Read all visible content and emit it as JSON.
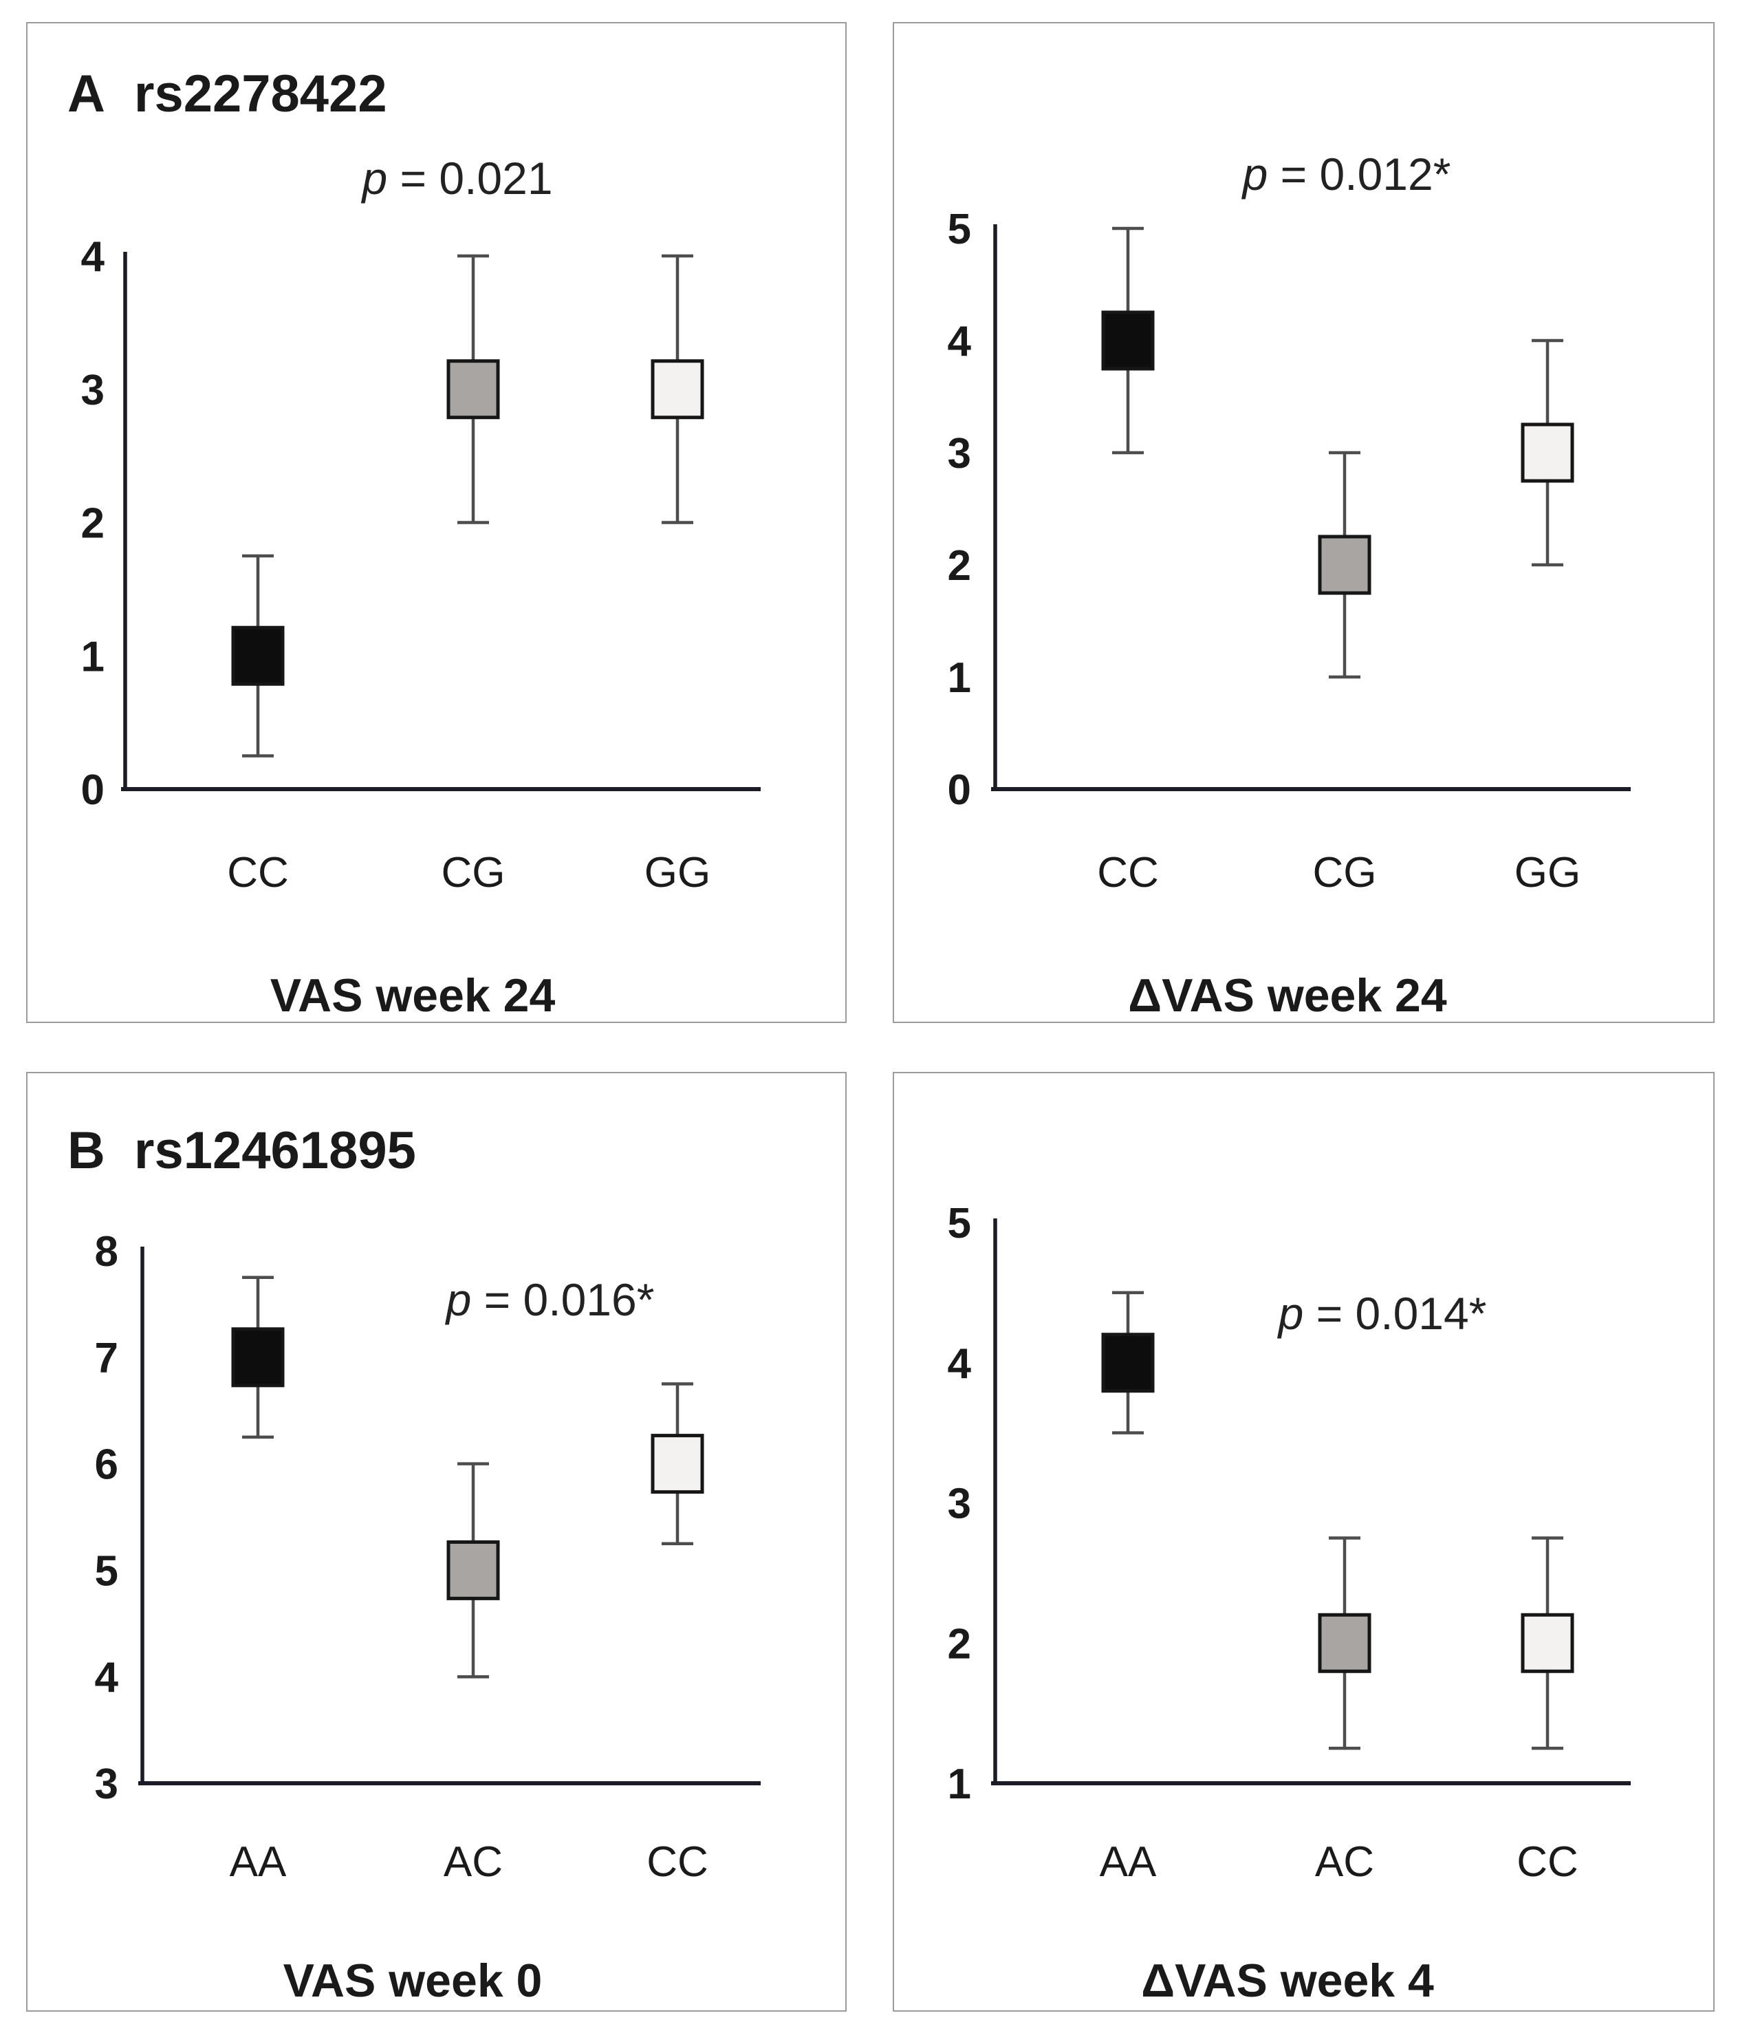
{
  "figure": {
    "style": {
      "marker_fill_dark": "#0d0d0d",
      "marker_fill_gray": "#a8a5a3",
      "marker_fill_light": "#f3f2f0",
      "marker_edge": "#161616",
      "error_bar_color": "#4d4d4d",
      "axis_color": "#1b1b26",
      "text_color": "#1a1a1a",
      "panel_border_color": "#9c9c9c"
    }
  },
  "chart_data": [
    {
      "type": "scatter",
      "panel_label": "A",
      "snp": "rs2278422",
      "p_label": "p = 0.021",
      "xlabel": "VAS week 24",
      "categories": [
        "CC",
        "CG",
        "GG"
      ],
      "means": [
        1,
        3,
        3
      ],
      "err_low": [
        0.25,
        2,
        2
      ],
      "err_high": [
        1.75,
        4,
        4
      ],
      "ylim": [
        0,
        4
      ],
      "yticks": [
        0,
        1,
        2,
        3,
        4
      ],
      "marker_colors": [
        "#0d0d0d",
        "#a8a5a3",
        "#f3f2f0"
      ],
      "grid": false,
      "legend": "none"
    },
    {
      "type": "scatter",
      "panel_label": "",
      "snp": "",
      "p_label": "p = 0.012*",
      "xlabel": "ΔVAS week 24",
      "categories": [
        "CC",
        "CG",
        "GG"
      ],
      "means": [
        4,
        2,
        3
      ],
      "err_low": [
        3,
        1,
        2
      ],
      "err_high": [
        5,
        3,
        4
      ],
      "ylim": [
        0,
        5
      ],
      "yticks": [
        0,
        1,
        2,
        3,
        4,
        5
      ],
      "marker_colors": [
        "#0d0d0d",
        "#a8a5a3",
        "#f3f2f0"
      ],
      "grid": false,
      "legend": "none"
    },
    {
      "type": "scatter",
      "panel_label": "B",
      "snp": "rs12461895",
      "p_label": "p = 0.016*",
      "xlabel": "VAS week 0",
      "categories": [
        "AA",
        "AC",
        "CC"
      ],
      "means": [
        7,
        5,
        6
      ],
      "err_low": [
        6.25,
        4,
        5.25
      ],
      "err_high": [
        7.75,
        6,
        6.75
      ],
      "ylim": [
        3,
        8
      ],
      "yticks": [
        3,
        4,
        5,
        6,
        7,
        8
      ],
      "marker_colors": [
        "#0d0d0d",
        "#a8a5a3",
        "#f3f2f0"
      ],
      "grid": false,
      "legend": "none"
    },
    {
      "type": "scatter",
      "panel_label": "",
      "snp": "",
      "p_label": "p = 0.014*",
      "xlabel": "ΔVAS week 4",
      "categories": [
        "AA",
        "AC",
        "CC"
      ],
      "means": [
        4,
        2,
        2
      ],
      "err_low": [
        3.5,
        1.25,
        1.25
      ],
      "err_high": [
        4.5,
        2.75,
        2.75
      ],
      "ylim": [
        1,
        5
      ],
      "yticks": [
        1,
        2,
        3,
        4,
        5
      ],
      "marker_colors": [
        "#0d0d0d",
        "#a8a5a3",
        "#f3f2f0"
      ],
      "grid": false,
      "legend": "none"
    }
  ]
}
